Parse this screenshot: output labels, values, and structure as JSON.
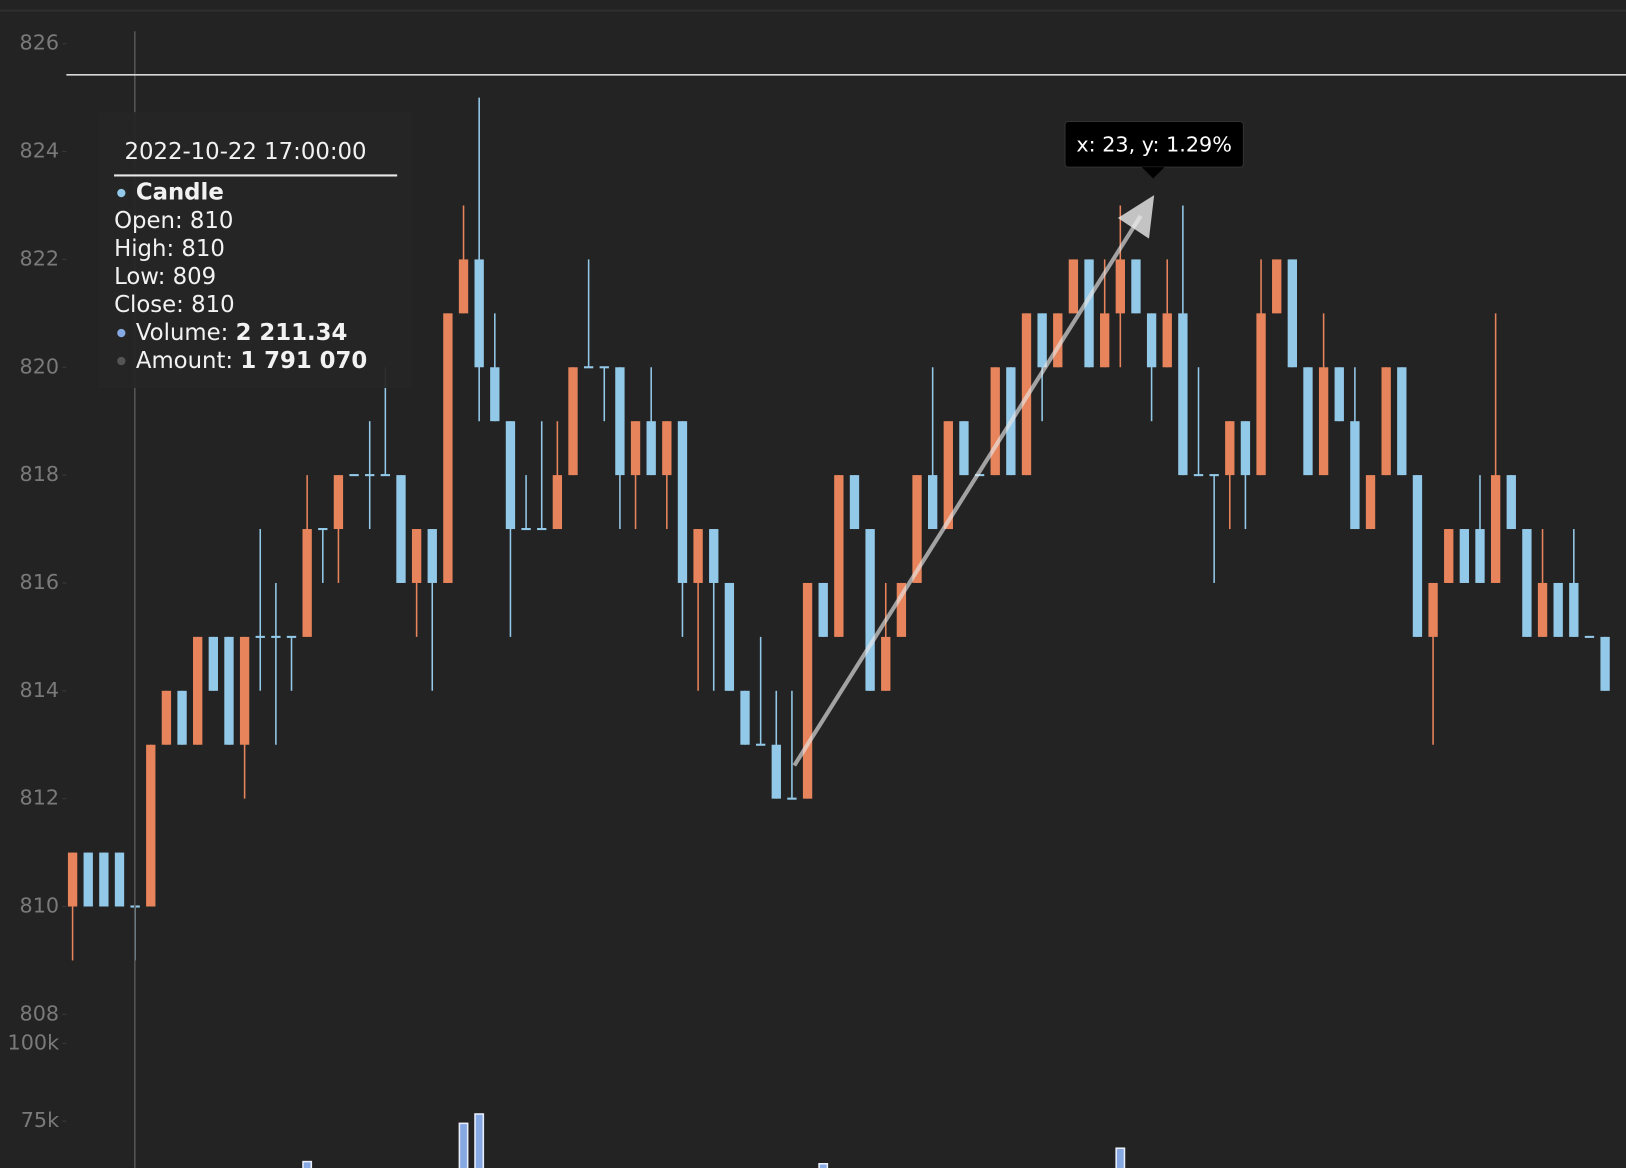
{
  "chart_data": {
    "type": "candlestick",
    "open": [
      810,
      811,
      811,
      811,
      810,
      810,
      813,
      814,
      813,
      815,
      815,
      813,
      815,
      815,
      815,
      815,
      817,
      817,
      818,
      818,
      818,
      818,
      816,
      817,
      816,
      821,
      822,
      820,
      819,
      817,
      817,
      817,
      818,
      820,
      820,
      820,
      818,
      819,
      818,
      819,
      816,
      817,
      816,
      814,
      813,
      813,
      812,
      812,
      816,
      815,
      818,
      817,
      814,
      815,
      816,
      818,
      817,
      819,
      818,
      818,
      820,
      818,
      821,
      820,
      821,
      822,
      820,
      821,
      822,
      821,
      820,
      821,
      818,
      818,
      818,
      819,
      818,
      821,
      822,
      820,
      818,
      820,
      819,
      817,
      818,
      820,
      818,
      815,
      816,
      817,
      817,
      816,
      818,
      817,
      815,
      816,
      816,
      815,
      815
    ],
    "high": [
      811,
      811,
      811,
      811,
      810,
      813,
      814,
      814,
      815,
      815,
      815,
      815,
      817,
      816,
      815,
      818,
      817,
      818,
      818,
      819,
      820,
      818,
      817,
      817,
      821,
      823,
      825,
      821,
      819,
      818,
      819,
      819,
      820,
      822,
      820,
      820,
      819,
      820,
      819,
      819,
      817,
      817,
      816,
      814,
      815,
      814,
      814,
      816,
      816,
      818,
      818,
      817,
      816,
      816,
      818,
      820,
      819,
      819,
      818,
      820,
      820,
      821,
      821,
      821,
      822,
      822,
      822,
      823,
      822,
      821,
      822,
      823,
      820,
      818,
      819,
      819,
      822,
      822,
      822,
      820,
      821,
      820,
      820,
      818,
      820,
      820,
      818,
      816,
      817,
      817,
      818,
      821,
      818,
      817,
      817,
      816,
      817,
      815,
      815
    ],
    "low": [
      809,
      810,
      810,
      810,
      809,
      810,
      813,
      813,
      813,
      814,
      813,
      812,
      814,
      813,
      814,
      815,
      816,
      816,
      818,
      817,
      818,
      816,
      815,
      814,
      816,
      821,
      819,
      819,
      815,
      817,
      817,
      817,
      818,
      820,
      819,
      817,
      817,
      818,
      817,
      815,
      814,
      814,
      814,
      813,
      813,
      812,
      812,
      812,
      815,
      815,
      817,
      814,
      814,
      815,
      816,
      817,
      817,
      818,
      818,
      818,
      818,
      818,
      819,
      820,
      821,
      820,
      820,
      820,
      821,
      819,
      820,
      818,
      818,
      816,
      817,
      817,
      818,
      821,
      820,
      818,
      818,
      819,
      817,
      817,
      818,
      818,
      815,
      813,
      816,
      816,
      816,
      816,
      817,
      815,
      815,
      815,
      815,
      815,
      814
    ],
    "close": [
      811,
      810,
      810,
      810,
      810,
      813,
      814,
      813,
      815,
      814,
      813,
      815,
      815,
      815,
      815,
      817,
      817,
      818,
      818,
      818,
      818,
      816,
      817,
      816,
      821,
      822,
      820,
      819,
      817,
      817,
      817,
      818,
      820,
      820,
      820,
      818,
      819,
      818,
      819,
      816,
      817,
      816,
      814,
      813,
      813,
      812,
      812,
      816,
      815,
      818,
      817,
      814,
      815,
      816,
      818,
      817,
      819,
      818,
      818,
      820,
      818,
      821,
      820,
      821,
      822,
      820,
      821,
      822,
      821,
      820,
      821,
      818,
      818,
      818,
      819,
      818,
      821,
      822,
      820,
      818,
      820,
      819,
      817,
      818,
      820,
      818,
      815,
      816,
      817,
      816,
      816,
      818,
      817,
      815,
      816,
      815,
      815,
      815,
      814
    ],
    "up_color": "#e8845b",
    "down_color": "#93c9e8",
    "ylim": [
      807.4,
      826.6
    ],
    "yticks": [
      808,
      810,
      812,
      814,
      816,
      818,
      820,
      822,
      824,
      826
    ],
    "volume": {
      "type": "bar",
      "color": "#86a9e3",
      "values": [
        null,
        null,
        null,
        null,
        null,
        null,
        null,
        null,
        null,
        null,
        null,
        null,
        null,
        null,
        null,
        62000,
        null,
        null,
        null,
        null,
        null,
        null,
        null,
        null,
        null,
        74300,
        77300,
        null,
        null,
        null,
        null,
        null,
        null,
        null,
        null,
        null,
        null,
        null,
        null,
        null,
        null,
        null,
        null,
        null,
        null,
        null,
        null,
        null,
        61300,
        null,
        null,
        null,
        null,
        null,
        null,
        null,
        null,
        null,
        null,
        null,
        null,
        null,
        null,
        null,
        null,
        null,
        null,
        66300,
        null,
        null,
        null,
        null,
        null,
        null,
        null,
        null,
        null,
        null,
        null,
        null,
        null,
        null,
        null,
        null,
        null,
        null,
        null,
        null,
        null,
        null,
        null,
        null,
        null,
        null,
        null,
        null,
        null,
        null,
        null
      ],
      "ylim": [
        60000,
        102000
      ],
      "yticks": [
        {
          "value": 100000,
          "label": "100k"
        },
        {
          "value": 75000,
          "label": "75k"
        }
      ]
    },
    "tooltip": {
      "date": "2022-10-22 17:00:00",
      "series": "Candle",
      "fields": [
        {
          "label": "Open:",
          "value": 810
        },
        {
          "label": "High:",
          "value": 810
        },
        {
          "label": "Low:",
          "value": 809
        },
        {
          "label": "Close:",
          "value": 810
        }
      ],
      "volume": {
        "label": "Volume:",
        "value": {
          "value": 2211.34,
          "label": "2 211.34"
        }
      },
      "amount": {
        "label": "Amount:",
        "value": {
          "value": 1791070,
          "label": "1 791 070"
        }
      }
    },
    "annotation": "x: 23, y: 1.29%"
  }
}
